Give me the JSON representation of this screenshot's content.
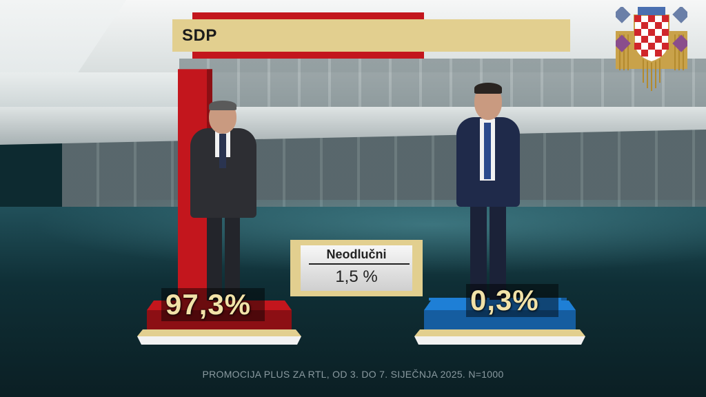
{
  "header": {
    "title": "SDP"
  },
  "undecided": {
    "label": "Neodlučni",
    "value": "1,5 %"
  },
  "footer": {
    "source": "PROMOCIJA PLUS ZA RTL, OD 3. DO 7. SIJEČNJA 2025. N=1000"
  },
  "colors": {
    "red": "#c3161d",
    "blue": "#1e7fd6",
    "gold": "#e2cf8f",
    "label": "#f1e2a8"
  },
  "chart_data": {
    "type": "bar",
    "categories": [
      "",
      ""
    ],
    "values": [
      97.3,
      0.3
    ],
    "value_labels": [
      "97,3%",
      "0,3%"
    ],
    "bar_colors": [
      "#c3161d",
      "#1e7fd6"
    ],
    "ylim": [
      0,
      100
    ],
    "undecided": 1.5,
    "title": ""
  },
  "icons": {
    "crest": "croatian-coat-of-arms-icon"
  }
}
